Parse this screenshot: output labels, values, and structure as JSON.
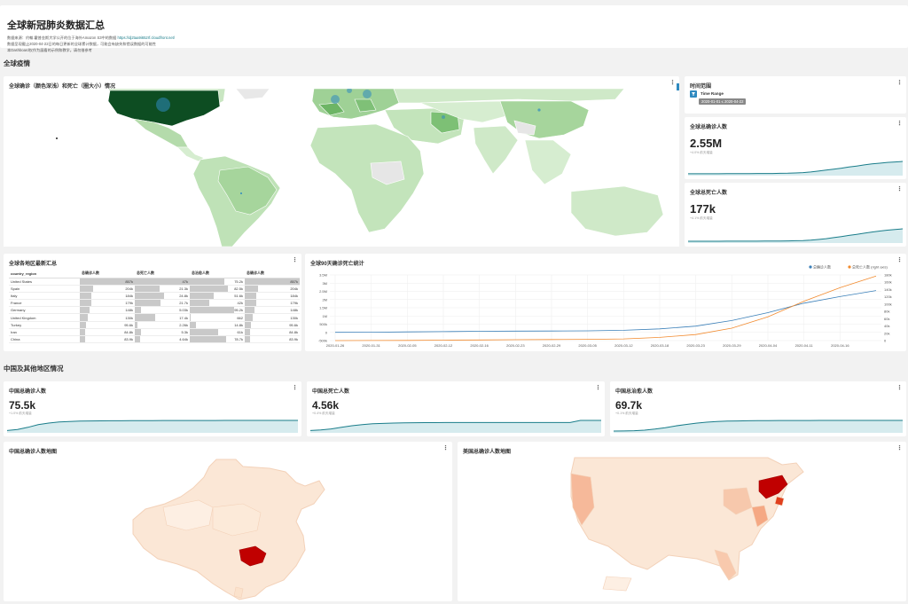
{
  "header": {
    "title": "全球新冠肺炎数据汇总",
    "desc_line1": "数据来源：约翰.霍普金斯大学公开的位于海外Amazon S3中的数据",
    "desc_link": "https://dj2taa9i652rf.cloudfront.net/",
    "desc_line2": "数据呈现截止2020-04-22日的每日更新的全球累计数据，可能会有缺失和错误数据的可能性",
    "desc_line3": "本Dashboard仅作为展看的示例和教学。请勿借参考"
  },
  "sections": {
    "global": "全球疫情",
    "china_other": "中国及其他地区情况"
  },
  "world_map": {
    "title": "全球确诊（颜色深浅）和死亡（圈大小）情况"
  },
  "time_range": {
    "title": "时间范围",
    "label": "Time Range",
    "value": "2020-01-01 ≤ 2020-04-22"
  },
  "kpi_global_confirmed": {
    "title": "全球总确诊人数",
    "value": "2.55M",
    "note": "+4.0% 前天增量",
    "series": [
      0.01,
      0.01,
      0.01,
      0.01,
      0.01,
      0.02,
      0.02,
      0.02,
      0.02,
      0.03,
      0.03,
      0.03,
      0.04,
      0.05,
      0.07,
      0.1,
      0.15,
      0.22,
      0.3,
      0.38,
      0.46,
      0.55,
      0.63,
      0.72,
      0.8,
      0.86,
      0.92,
      0.96,
      1.0
    ]
  },
  "kpi_global_deaths": {
    "title": "全球总死亡人数",
    "value": "177k",
    "note": "+4.1% 前天增量",
    "series": [
      0.0,
      0.0,
      0.0,
      0.0,
      0.0,
      0.01,
      0.01,
      0.01,
      0.01,
      0.01,
      0.02,
      0.02,
      0.02,
      0.03,
      0.04,
      0.06,
      0.09,
      0.14,
      0.21,
      0.29,
      0.38,
      0.47,
      0.56,
      0.65,
      0.74,
      0.82,
      0.89,
      0.95,
      1.0
    ]
  },
  "region_table": {
    "title": "全球各地区最新汇总",
    "columns": [
      "country_region",
      "总确诊人数",
      "总死亡人数",
      "总治愈人数",
      "总确诊人数"
    ],
    "rows": [
      {
        "name": "United States",
        "c1": "857k",
        "c2": "47k",
        "c3": "75.2k",
        "c4": "857k",
        "f1": 1.0,
        "f2": 1.0,
        "f3": 0.63,
        "f4": 1.0
      },
      {
        "name": "Spain",
        "c1": "204k",
        "c2": "21.3k",
        "c3": "82.5k",
        "c4": "204k",
        "f1": 0.24,
        "f2": 0.45,
        "f3": 0.69,
        "f4": 0.24
      },
      {
        "name": "Italy",
        "c1": "184k",
        "c2": "24.8k",
        "c3": "51.6k",
        "c4": "184k",
        "f1": 0.21,
        "f2": 0.53,
        "f3": 0.43,
        "f4": 0.21
      },
      {
        "name": "France",
        "c1": "179k",
        "c2": "21.7k",
        "c3": "42k",
        "c4": "179k",
        "f1": 0.21,
        "f2": 0.46,
        "f3": 0.35,
        "f4": 0.21
      },
      {
        "name": "Germany",
        "c1": "148k",
        "c2": "5.03k",
        "c3": "95.2k",
        "c4": "148k",
        "f1": 0.17,
        "f2": 0.11,
        "f3": 0.8,
        "f4": 0.17
      },
      {
        "name": "United Kingdom",
        "c1": "130k",
        "c2": "17.4k",
        "c3": "662",
        "c4": "130k",
        "f1": 0.15,
        "f2": 0.37,
        "f3": 0.01,
        "f4": 0.15
      },
      {
        "name": "Turkey",
        "c1": "95.6k",
        "c2": "2.26k",
        "c3": "14.8k",
        "c4": "95.6k",
        "f1": 0.11,
        "f2": 0.05,
        "f3": 0.12,
        "f4": 0.11
      },
      {
        "name": "Iran",
        "c1": "84.8k",
        "c2": "5.3k",
        "c3": "61k",
        "c4": "84.8k",
        "f1": 0.1,
        "f2": 0.11,
        "f3": 0.51,
        "f4": 0.1
      },
      {
        "name": "China",
        "c1": "83.9k",
        "c2": "4.64k",
        "c3": "78.7k",
        "c4": "83.9k",
        "f1": 0.1,
        "f2": 0.1,
        "f3": 0.66,
        "f4": 0.1
      }
    ]
  },
  "trend_chart": {
    "title": "全球90天确诊死亡统计",
    "legend": [
      "总确诊人数",
      "总死亡人数 (right axis)"
    ],
    "colors": {
      "confirmed": "#3a7fb8",
      "deaths": "#f28a2e",
      "kpi_line": "#1a7d8a",
      "kpi_fill": "#d6ebee"
    }
  },
  "chart_data": {
    "type": "line",
    "title": "全球90天确诊死亡统计",
    "x": [
      "2020-01-26",
      "2020-01-31",
      "2020-02-05",
      "2020-02-12",
      "2020-02-16",
      "2020-02-23",
      "2020-02-29",
      "2020-03-05",
      "2020-03-12",
      "2020-03-18",
      "2020-03-23",
      "2020-03-29",
      "2020-04-04",
      "2020-04-11",
      "2020-04-16",
      "2020-04-22"
    ],
    "y_left_ticks": [
      "3.5M",
      "3M",
      "2.5M",
      "2M",
      "1.5M",
      "1M",
      "500k",
      "0",
      "-500k"
    ],
    "y_right_ticks": [
      "180k",
      "160k",
      "140k",
      "120k",
      "100k",
      "80k",
      "60k",
      "40k",
      "20k",
      "0"
    ],
    "ylim_left": [
      -500000,
      3500000
    ],
    "ylim_right": [
      0,
      180000
    ],
    "series": [
      {
        "name": "总确诊人数",
        "axis": "left",
        "values": [
          2000,
          10000,
          28000,
          45000,
          70000,
          79000,
          86000,
          97000,
          128000,
          215000,
          380000,
          720000,
          1200000,
          1780000,
          2180000,
          2550000
        ]
      },
      {
        "name": "总死亡人数 (right axis)",
        "axis": "right",
        "values": [
          0,
          200,
          560,
          1100,
          1700,
          2400,
          2900,
          3300,
          4600,
          8700,
          16500,
          34000,
          65000,
          108000,
          145000,
          177000
        ]
      }
    ],
    "grid": true,
    "legend_position": "top-right"
  },
  "kpi_china_confirmed": {
    "title": "中国总确诊人数",
    "value": "75.5k",
    "note": "+1.0% 前天增量",
    "series": [
      0.05,
      0.15,
      0.35,
      0.6,
      0.75,
      0.85,
      0.9,
      0.93,
      0.95,
      0.96,
      0.97,
      0.97,
      0.98,
      0.98,
      0.98,
      0.99,
      0.99,
      0.99,
      0.99,
      0.99,
      0.99,
      1.0,
      1.0,
      1.0,
      1.0,
      1.0,
      1.0,
      1.0,
      1.0
    ]
  },
  "kpi_china_deaths": {
    "title": "中国总死亡人数",
    "value": "4.56k",
    "note": "+0.4% 前天增量",
    "series": [
      0.05,
      0.1,
      0.2,
      0.35,
      0.5,
      0.6,
      0.68,
      0.72,
      0.75,
      0.77,
      0.78,
      0.79,
      0.79,
      0.8,
      0.8,
      0.8,
      0.8,
      0.8,
      0.8,
      0.8,
      0.8,
      0.8,
      0.8,
      0.8,
      0.8,
      0.8,
      1.0,
      1.0,
      1.0
    ]
  },
  "kpi_china_recovered": {
    "title": "中国总治愈人数",
    "value": "69.7k",
    "note": "+0.1% 前天增量",
    "series": [
      0.0,
      0.01,
      0.03,
      0.08,
      0.18,
      0.32,
      0.48,
      0.62,
      0.74,
      0.83,
      0.89,
      0.93,
      0.95,
      0.97,
      0.98,
      0.98,
      0.99,
      0.99,
      0.99,
      0.99,
      1.0,
      1.0,
      1.0,
      1.0,
      1.0,
      1.0,
      1.0,
      1.0,
      1.0
    ]
  },
  "china_map": {
    "title": "中国总确诊人数地图"
  },
  "us_map": {
    "title": "美国总确诊人数地图"
  }
}
